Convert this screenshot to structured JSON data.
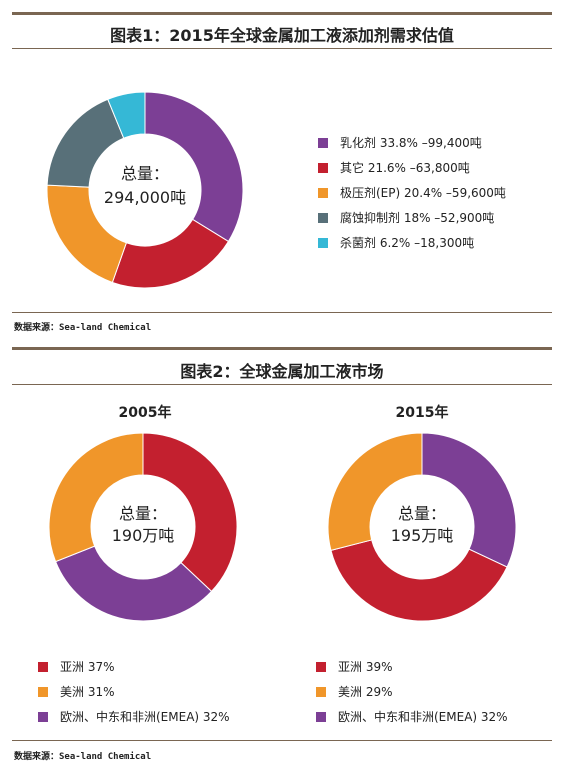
{
  "colors": {
    "purple": "#7c3f95",
    "red": "#c3202f",
    "orange": "#f0962a",
    "slate": "#587079",
    "cyan": "#35b8d6",
    "rule": "#7a6652"
  },
  "fig1": {
    "title": "图表1：2015年全球金属加工液添加剂需求估值",
    "center_label": "总量：",
    "center_value": "294,000吨",
    "source": "数据来源：Sea-land Chemical"
  },
  "fig2": {
    "title": "图表2：全球金属加工液市场",
    "source": "数据来源：Sea-land Chemical"
  },
  "chart_data": [
    {
      "type": "pie",
      "categories": [
        "乳化剂",
        "其它",
        "极压剂(EP)",
        "腐蚀抑制剂",
        "杀菌剂"
      ],
      "values": [
        33.8,
        21.6,
        20.4,
        18,
        6.2
      ],
      "colors": [
        "#7c3f95",
        "#c3202f",
        "#f0962a",
        "#587079",
        "#35b8d6"
      ],
      "legend": [
        "乳化剂 33.8% –99,400吨",
        "其它 21.6% –63,800吨",
        "极压剂(EP) 20.4% –59,600吨",
        "腐蚀抑制剂 18% –52,900吨",
        "杀菌剂 6.2% –18,300吨"
      ],
      "legend_position": "right"
    },
    {
      "type": "pie",
      "title": "2005年",
      "center_label": "总量：",
      "center_value": "190万吨",
      "categories": [
        "亚洲",
        "美洲",
        "欧洲、中东和非洲(EMEA)"
      ],
      "values": [
        37,
        31,
        32
      ],
      "draw_order": [
        0,
        2,
        1
      ],
      "colors": [
        "#c3202f",
        "#f0962a",
        "#7c3f95"
      ],
      "legend": [
        "亚洲 37%",
        "美洲 31%",
        "欧洲、中东和非洲(EMEA) 32%"
      ],
      "legend_position": "bottom"
    },
    {
      "type": "pie",
      "title": "2015年",
      "center_label": "总量：",
      "center_value": "195万吨",
      "categories": [
        "亚洲",
        "美洲",
        "欧洲、中东和非洲(EMEA)"
      ],
      "values": [
        39,
        29,
        32
      ],
      "draw_order": [
        2,
        0,
        1
      ],
      "colors": [
        "#c3202f",
        "#f0962a",
        "#7c3f95"
      ],
      "legend": [
        "亚洲 39%",
        "美洲 29%",
        "欧洲、中东和非洲(EMEA) 32%"
      ],
      "legend_position": "bottom"
    }
  ]
}
